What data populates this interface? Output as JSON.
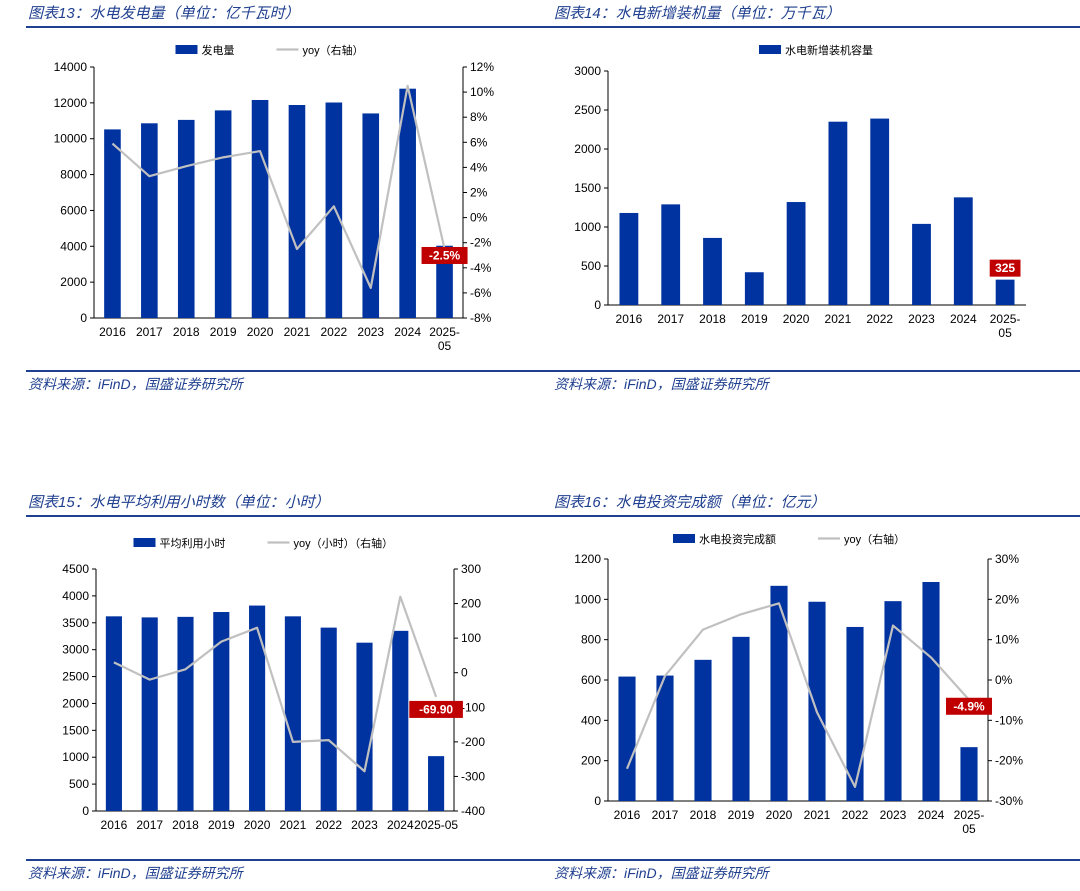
{
  "panels": [
    {
      "title": "图表13：水电发电量（单位：亿千瓦时）",
      "source": "资料来源：iFinD，国盛证券研究所",
      "chart_data": {
        "type": "bar",
        "categories": [
          "2016",
          "2017",
          "2018",
          "2019",
          "2020",
          "2021",
          "2022",
          "2023",
          "2024",
          "2025-05"
        ],
        "series": [
          {
            "name": "发电量",
            "type": "bar",
            "axis": "left",
            "values": [
              10520,
              10860,
              11050,
              11580,
              12160,
              11880,
              12020,
              11410,
              12790,
              4030
            ]
          },
          {
            "name": "yoy（右轴）",
            "type": "line",
            "axis": "right",
            "values": [
              5.9,
              3.3,
              4.1,
              4.8,
              5.3,
              -2.5,
              0.9,
              -5.6,
              10.5,
              -2.5
            ]
          }
        ],
        "yleft": {
          "min": 0,
          "max": 14000,
          "step": 2000,
          "suffix": ""
        },
        "yright": {
          "min": -8,
          "max": 12,
          "step": 2,
          "suffix": "%"
        },
        "callout": {
          "text": "-2.5%",
          "index": 9
        },
        "legend": "top"
      }
    },
    {
      "title": "图表14：水电新增装机量（单位：万千瓦）",
      "source": "资料来源：iFinD，国盛证券研究所",
      "chart_data": {
        "type": "bar",
        "categories": [
          "2016",
          "2017",
          "2018",
          "2019",
          "2020",
          "2021",
          "2022",
          "2023",
          "2024",
          "2025-05"
        ],
        "series": [
          {
            "name": "水电新增装机容量",
            "type": "bar",
            "axis": "left",
            "values": [
              1180,
              1290,
              860,
              420,
              1320,
              2350,
              2390,
              1040,
              1380,
              325
            ]
          }
        ],
        "yleft": {
          "min": 0,
          "max": 3000,
          "step": 500,
          "suffix": ""
        },
        "callout": {
          "text": "325",
          "index": 9
        },
        "legend": "top"
      }
    },
    {
      "title": "图表15：水电平均利用小时数（单位：小时）",
      "source": "资料来源：iFinD，国盛证券研究所",
      "chart_data": {
        "type": "bar",
        "categories": [
          "2016",
          "2017",
          "2018",
          "2019",
          "2020",
          "2021",
          "2022",
          "2023",
          "2024",
          "2025-05"
        ],
        "series": [
          {
            "name": "平均利用小时",
            "type": "bar",
            "axis": "left",
            "values": [
              3620,
              3600,
              3610,
              3700,
              3820,
              3620,
              3410,
              3130,
              3350,
              1020
            ]
          },
          {
            "name": "yoy（小时）（右轴）",
            "type": "line",
            "axis": "right",
            "values": [
              30,
              -20,
              10,
              90,
              130,
              -200,
              -195,
              -285,
              220,
              -70
            ]
          }
        ],
        "yleft": {
          "min": 0,
          "max": 4500,
          "step": 500,
          "suffix": ""
        },
        "yright": {
          "min": -400,
          "max": 300,
          "step": 100,
          "suffix": ""
        },
        "callout": {
          "text": "-69.90",
          "index": 9
        },
        "legend": "top"
      }
    },
    {
      "title": "图表16：水电投资完成额（单位：亿元）",
      "source": "资料来源：iFinD，国盛证券研究所",
      "chart_data": {
        "type": "bar",
        "categories": [
          "2016",
          "2017",
          "2018",
          "2019",
          "2020",
          "2021",
          "2022",
          "2023",
          "2024",
          "2025-05"
        ],
        "series": [
          {
            "name": "水电投资完成额",
            "type": "bar",
            "axis": "left",
            "values": [
              617,
              622,
              700,
              814,
              1067,
              988,
              863,
              991,
              1086,
              267
            ]
          },
          {
            "name": "yoy（右轴）",
            "type": "line",
            "axis": "right",
            "values": [
              -22,
              1,
              12.5,
              16.3,
              19,
              -8,
              -26.5,
              13.5,
              5.6,
              -4.9
            ]
          }
        ],
        "yleft": {
          "min": 0,
          "max": 1200,
          "step": 200,
          "suffix": ""
        },
        "yright": {
          "min": -30,
          "max": 30,
          "step": 10,
          "suffix": "%"
        },
        "callout": {
          "text": "-4.9%",
          "index": 9
        },
        "legend": "top"
      }
    }
  ],
  "colors": {
    "bar": "#0033a0",
    "line": "#c0c0c0",
    "callout": "#c00000",
    "title": "#1f3f8f",
    "axis": "#000000"
  }
}
